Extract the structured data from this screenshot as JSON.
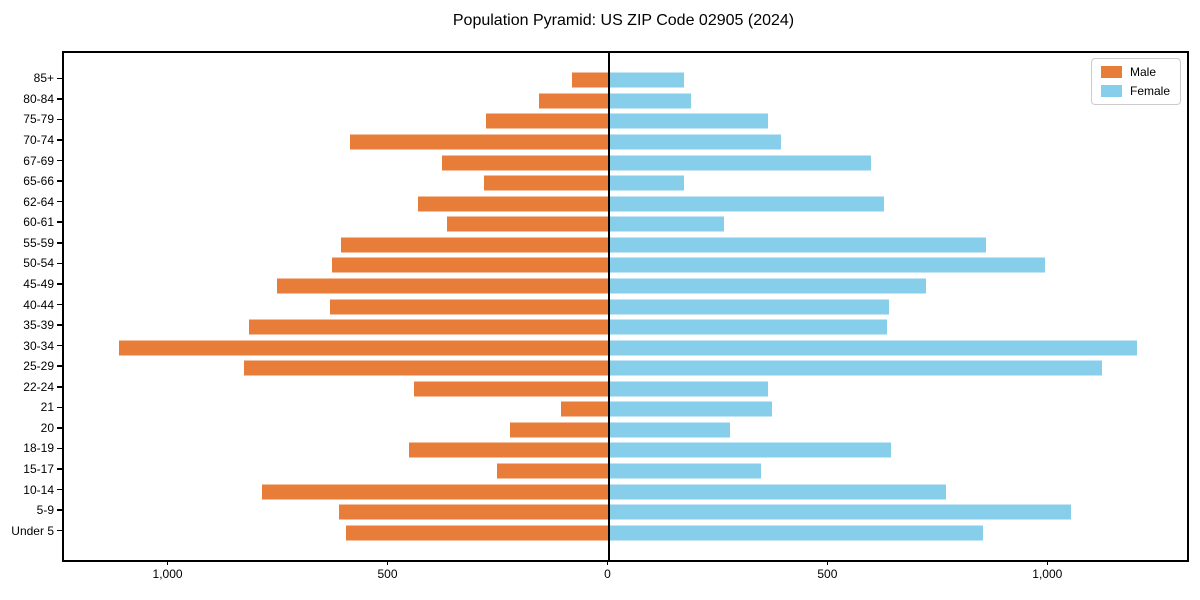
{
  "figure": {
    "background": "#ffffff"
  },
  "chart_data": {
    "type": "bar",
    "subtype": "population-pyramid",
    "title": "Population Pyramid: US ZIP Code 02905 (2024)",
    "orientation": "horizontal",
    "categories": [
      "85+",
      "80-84",
      "75-79",
      "70-74",
      "67-69",
      "65-66",
      "62-64",
      "60-61",
      "55-59",
      "50-54",
      "45-49",
      "40-44",
      "35-39",
      "30-34",
      "25-29",
      "22-24",
      "21",
      "20",
      "18-19",
      "15-17",
      "10-14",
      "5-9",
      "Under 5"
    ],
    "series": [
      {
        "name": "Male",
        "side": "left",
        "color": "#e87d3a",
        "values": [
          85,
          160,
          280,
          590,
          380,
          285,
          435,
          370,
          610,
          630,
          755,
          635,
          820,
          1115,
          830,
          445,
          110,
          225,
          455,
          255,
          790,
          615,
          600
        ]
      },
      {
        "name": "Female",
        "side": "right",
        "color": "#87ceeb",
        "values": [
          170,
          185,
          360,
          390,
          595,
          170,
          625,
          260,
          855,
          990,
          720,
          635,
          630,
          1200,
          1120,
          360,
          370,
          275,
          640,
          345,
          765,
          1050,
          850
        ]
      }
    ],
    "x_ticks": [
      {
        "value": -1000,
        "label": "1,000"
      },
      {
        "value": -500,
        "label": "500"
      },
      {
        "value": 0,
        "label": "0"
      },
      {
        "value": 500,
        "label": "500"
      },
      {
        "value": 1000,
        "label": "1,000"
      }
    ],
    "xlim": [
      -1240,
      1313
    ],
    "ylabel": "",
    "xlabel": "",
    "legend_position": "upper right",
    "grid": false,
    "axis_color": "#000000"
  }
}
